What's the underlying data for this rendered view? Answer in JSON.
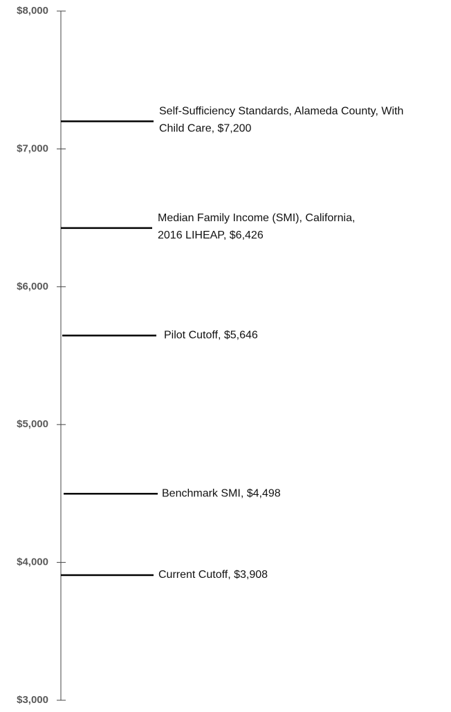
{
  "chart_data": {
    "type": "level",
    "labels": [
      [
        "Self-Sufficiency Standards, Alameda County, With",
        "Child Care, $7,200"
      ],
      [
        "Median Family Income (SMI), California,",
        "2016 LIHEAP, $6,426"
      ],
      [
        "Pilot Cutoff, $5,646"
      ],
      [
        "Benchmark SMI, $4,498"
      ],
      [
        "Current Cutoff, $3,908"
      ]
    ],
    "values": [
      7200,
      6426,
      5646,
      4498,
      3908
    ],
    "color": "#000000",
    "ylim": [
      3000,
      8000
    ],
    "yticks": [
      {
        "value": 3000,
        "label": "$3,000"
      },
      {
        "value": 4000,
        "label": "$4,000"
      },
      {
        "value": 5000,
        "label": "$5,000"
      },
      {
        "value": 6000,
        "label": "$6,000"
      },
      {
        "value": 7000,
        "label": "$7,000"
      },
      {
        "value": 8000,
        "label": "$8,000"
      }
    ]
  }
}
